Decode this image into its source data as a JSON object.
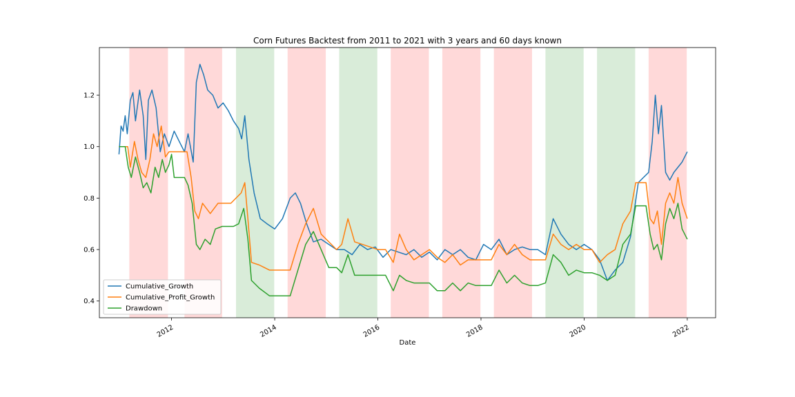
{
  "chart_data": {
    "type": "line",
    "title": "Corn Futures Backtest from 2011 to 2021 with 3 years and 60 days known",
    "xlabel": "Date",
    "ylabel": "",
    "xlim": [
      2010.6,
      2022.55
    ],
    "ylim": [
      0.335,
      1.385
    ],
    "x_ticks": [
      {
        "value": 2012,
        "label": "2012"
      },
      {
        "value": 2014,
        "label": "2014"
      },
      {
        "value": 2016,
        "label": "2016"
      },
      {
        "value": 2018,
        "label": "2018"
      },
      {
        "value": 2020,
        "label": "2020"
      },
      {
        "value": 2022,
        "label": "2022"
      }
    ],
    "y_ticks": [
      {
        "value": 0.4,
        "label": "0.4"
      },
      {
        "value": 0.6,
        "label": "0.6"
      },
      {
        "value": 0.8,
        "label": "0.8"
      },
      {
        "value": 1.0,
        "label": "1.0"
      },
      {
        "value": 1.2,
        "label": "1.2"
      }
    ],
    "grid": false,
    "legend_position": "lower-left",
    "shaded_regions": [
      {
        "start": 2011.18,
        "end": 2011.93,
        "color": "#ffcccc"
      },
      {
        "start": 2012.25,
        "end": 2012.98,
        "color": "#ffcccc"
      },
      {
        "start": 2013.25,
        "end": 2013.99,
        "color": "#cce6cc"
      },
      {
        "start": 2014.25,
        "end": 2014.99,
        "color": "#ffcccc"
      },
      {
        "start": 2015.25,
        "end": 2015.99,
        "color": "#cce6cc"
      },
      {
        "start": 2016.25,
        "end": 2016.99,
        "color": "#ffcccc"
      },
      {
        "start": 2017.25,
        "end": 2017.99,
        "color": "#ffcccc"
      },
      {
        "start": 2018.25,
        "end": 2018.99,
        "color": "#ffcccc"
      },
      {
        "start": 2019.25,
        "end": 2019.99,
        "color": "#cce6cc"
      },
      {
        "start": 2020.25,
        "end": 2020.99,
        "color": "#cce6cc"
      },
      {
        "start": 2021.25,
        "end": 2021.99,
        "color": "#ffcccc"
      }
    ],
    "series": [
      {
        "name": "Cumulative_Growth",
        "color": "#1f77b4",
        "x": [
          2010.98,
          2011.02,
          2011.06,
          2011.1,
          2011.14,
          2011.2,
          2011.25,
          2011.3,
          2011.38,
          2011.45,
          2011.5,
          2011.55,
          2011.62,
          2011.7,
          2011.78,
          2011.86,
          2011.95,
          2012.05,
          2012.15,
          2012.25,
          2012.32,
          2012.42,
          2012.48,
          2012.55,
          2012.62,
          2012.7,
          2012.8,
          2012.9,
          2013.0,
          2013.1,
          2013.2,
          2013.3,
          2013.36,
          2013.42,
          2013.5,
          2013.6,
          2013.72,
          2013.85,
          2014.0,
          2014.15,
          2014.3,
          2014.4,
          2014.5,
          2014.62,
          2014.75,
          2014.9,
          2015.05,
          2015.2,
          2015.35,
          2015.5,
          2015.65,
          2015.8,
          2015.95,
          2016.1,
          2016.25,
          2016.4,
          2016.55,
          2016.7,
          2016.85,
          2017.0,
          2017.15,
          2017.3,
          2017.45,
          2017.6,
          2017.75,
          2017.9,
          2018.05,
          2018.2,
          2018.35,
          2018.5,
          2018.65,
          2018.8,
          2018.95,
          2019.1,
          2019.25,
          2019.4,
          2019.55,
          2019.7,
          2019.85,
          2020.0,
          2020.15,
          2020.3,
          2020.45,
          2020.6,
          2020.75,
          2020.9,
          2021.05,
          2021.15,
          2021.25,
          2021.32,
          2021.38,
          2021.44,
          2021.5,
          2021.58,
          2021.66,
          2021.74,
          2021.82,
          2021.9,
          2022.0
        ],
        "values": [
          0.97,
          1.08,
          1.06,
          1.12,
          1.05,
          1.18,
          1.21,
          1.1,
          1.22,
          1.12,
          0.95,
          1.18,
          1.22,
          1.15,
          0.98,
          1.05,
          1.0,
          1.06,
          1.02,
          0.98,
          1.05,
          0.94,
          1.25,
          1.32,
          1.28,
          1.22,
          1.2,
          1.15,
          1.17,
          1.14,
          1.1,
          1.07,
          1.03,
          1.12,
          0.95,
          0.82,
          0.72,
          0.7,
          0.68,
          0.72,
          0.8,
          0.82,
          0.78,
          0.7,
          0.63,
          0.64,
          0.62,
          0.6,
          0.6,
          0.58,
          0.62,
          0.6,
          0.61,
          0.57,
          0.6,
          0.59,
          0.58,
          0.6,
          0.57,
          0.59,
          0.56,
          0.6,
          0.58,
          0.6,
          0.57,
          0.56,
          0.62,
          0.6,
          0.64,
          0.58,
          0.6,
          0.61,
          0.6,
          0.6,
          0.58,
          0.72,
          0.66,
          0.62,
          0.6,
          0.62,
          0.6,
          0.56,
          0.48,
          0.52,
          0.55,
          0.65,
          0.86,
          0.88,
          0.9,
          1.02,
          1.2,
          1.05,
          1.16,
          0.9,
          0.87,
          0.9,
          0.92,
          0.94,
          0.98
        ]
      },
      {
        "name": "Cumulative_Profit_Growth",
        "color": "#ff7f0e",
        "x": [
          2010.98,
          2011.05,
          2011.15,
          2011.2,
          2011.28,
          2011.35,
          2011.42,
          2011.5,
          2011.58,
          2011.65,
          2011.72,
          2011.8,
          2011.88,
          2011.95,
          2012.05,
          2012.2,
          2012.3,
          2012.38,
          2012.45,
          2012.52,
          2012.6,
          2012.75,
          2012.9,
          2013.0,
          2013.15,
          2013.25,
          2013.35,
          2013.42,
          2013.48,
          2013.55,
          2013.7,
          2013.9,
          2014.1,
          2014.3,
          2014.45,
          2014.6,
          2014.75,
          2014.9,
          2015.05,
          2015.2,
          2015.3,
          2015.42,
          2015.55,
          2015.7,
          2015.85,
          2016.0,
          2016.15,
          2016.3,
          2016.42,
          2016.55,
          2016.7,
          2016.85,
          2017.0,
          2017.15,
          2017.3,
          2017.45,
          2017.6,
          2017.75,
          2017.9,
          2018.05,
          2018.2,
          2018.35,
          2018.5,
          2018.65,
          2018.8,
          2018.95,
          2019.1,
          2019.25,
          2019.4,
          2019.55,
          2019.7,
          2019.85,
          2020.0,
          2020.15,
          2020.3,
          2020.45,
          2020.6,
          2020.75,
          2020.9,
          2021.0,
          2021.1,
          2021.2,
          2021.28,
          2021.35,
          2021.42,
          2021.5,
          2021.58,
          2021.66,
          2021.74,
          2021.82,
          2021.9,
          2022.0
        ],
        "values": [
          1.0,
          1.0,
          1.0,
          0.92,
          1.02,
          0.95,
          0.9,
          0.88,
          0.95,
          1.05,
          1.0,
          1.08,
          0.96,
          0.98,
          0.98,
          0.98,
          0.98,
          0.88,
          0.75,
          0.72,
          0.78,
          0.74,
          0.78,
          0.78,
          0.78,
          0.8,
          0.82,
          0.86,
          0.72,
          0.55,
          0.54,
          0.52,
          0.52,
          0.52,
          0.62,
          0.7,
          0.76,
          0.66,
          0.63,
          0.6,
          0.62,
          0.72,
          0.63,
          0.62,
          0.61,
          0.6,
          0.6,
          0.55,
          0.66,
          0.6,
          0.56,
          0.58,
          0.6,
          0.57,
          0.55,
          0.58,
          0.54,
          0.56,
          0.56,
          0.56,
          0.56,
          0.62,
          0.58,
          0.62,
          0.58,
          0.56,
          0.56,
          0.56,
          0.66,
          0.62,
          0.6,
          0.62,
          0.6,
          0.6,
          0.55,
          0.58,
          0.6,
          0.7,
          0.75,
          0.86,
          0.86,
          0.86,
          0.72,
          0.7,
          0.75,
          0.62,
          0.78,
          0.82,
          0.78,
          0.88,
          0.78,
          0.72
        ]
      },
      {
        "name": "Drawdown",
        "color": "#2ca02c",
        "x": [
          2010.98,
          2011.1,
          2011.16,
          2011.22,
          2011.3,
          2011.38,
          2011.45,
          2011.52,
          2011.6,
          2011.68,
          2011.75,
          2011.82,
          2011.88,
          2011.95,
          2012.0,
          2012.05,
          2012.15,
          2012.25,
          2012.32,
          2012.4,
          2012.48,
          2012.55,
          2012.65,
          2012.75,
          2012.85,
          2012.98,
          2013.1,
          2013.2,
          2013.3,
          2013.4,
          2013.48,
          2013.55,
          2013.7,
          2013.9,
          2014.1,
          2014.3,
          2014.45,
          2014.6,
          2014.75,
          2014.9,
          2015.05,
          2015.2,
          2015.3,
          2015.42,
          2015.55,
          2015.7,
          2015.85,
          2016.0,
          2016.15,
          2016.3,
          2016.42,
          2016.55,
          2016.7,
          2016.85,
          2017.0,
          2017.15,
          2017.3,
          2017.45,
          2017.6,
          2017.75,
          2017.9,
          2018.05,
          2018.2,
          2018.35,
          2018.5,
          2018.65,
          2018.8,
          2018.95,
          2019.1,
          2019.25,
          2019.4,
          2019.55,
          2019.7,
          2019.85,
          2020.0,
          2020.15,
          2020.3,
          2020.45,
          2020.6,
          2020.75,
          2020.9,
          2021.0,
          2021.1,
          2021.2,
          2021.28,
          2021.35,
          2021.42,
          2021.5,
          2021.58,
          2021.66,
          2021.74,
          2021.82,
          2021.9,
          2022.0
        ],
        "values": [
          1.0,
          1.0,
          0.92,
          0.88,
          0.96,
          0.9,
          0.84,
          0.86,
          0.82,
          0.92,
          0.88,
          0.95,
          0.9,
          0.93,
          0.97,
          0.88,
          0.88,
          0.88,
          0.85,
          0.78,
          0.62,
          0.6,
          0.64,
          0.62,
          0.68,
          0.69,
          0.69,
          0.69,
          0.7,
          0.76,
          0.64,
          0.48,
          0.45,
          0.42,
          0.42,
          0.42,
          0.52,
          0.62,
          0.67,
          0.6,
          0.53,
          0.53,
          0.51,
          0.58,
          0.5,
          0.5,
          0.5,
          0.5,
          0.5,
          0.44,
          0.5,
          0.48,
          0.47,
          0.47,
          0.47,
          0.44,
          0.44,
          0.47,
          0.44,
          0.47,
          0.46,
          0.46,
          0.46,
          0.52,
          0.47,
          0.5,
          0.47,
          0.46,
          0.46,
          0.47,
          0.58,
          0.55,
          0.5,
          0.52,
          0.51,
          0.51,
          0.5,
          0.48,
          0.5,
          0.62,
          0.66,
          0.77,
          0.77,
          0.77,
          0.66,
          0.6,
          0.62,
          0.56,
          0.7,
          0.76,
          0.72,
          0.78,
          0.68,
          0.64
        ]
      }
    ]
  }
}
